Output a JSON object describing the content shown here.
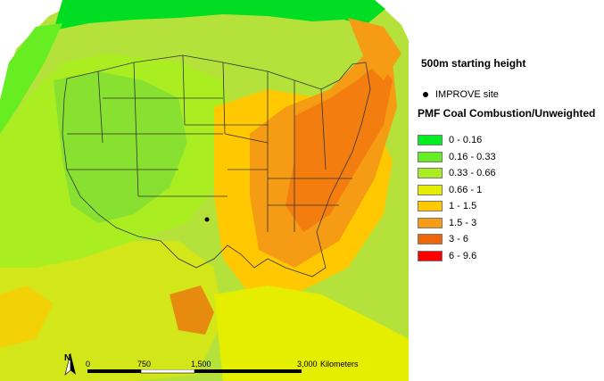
{
  "legend": {
    "subtitle": "500m starting height",
    "site_label": "IMPROVE site",
    "title": "PMF Coal Combustion/Unweighted",
    "classes": [
      {
        "label": "0 - 0.16",
        "color": "#00ee22"
      },
      {
        "label": "0.16 - 0.33",
        "color": "#66ee22"
      },
      {
        "label": "0.33 - 0.66",
        "color": "#aaee22"
      },
      {
        "label": "0.66 - 1",
        "color": "#e6ee00"
      },
      {
        "label": "1 - 1.5",
        "color": "#ffc800"
      },
      {
        "label": "1.5 - 3",
        "color": "#f59b14"
      },
      {
        "label": "3 - 6",
        "color": "#f0640a"
      },
      {
        "label": "6 - 9.6",
        "color": "#ff0000"
      }
    ]
  },
  "scalebar": {
    "ticks": [
      "0",
      "750",
      "1,500",
      "3,000"
    ],
    "unit": "Kilometers"
  },
  "north_arrow": {
    "letter": "N",
    "icon": "north-arrow-icon"
  },
  "site": {
    "name": "IMPROVE site marker"
  }
}
